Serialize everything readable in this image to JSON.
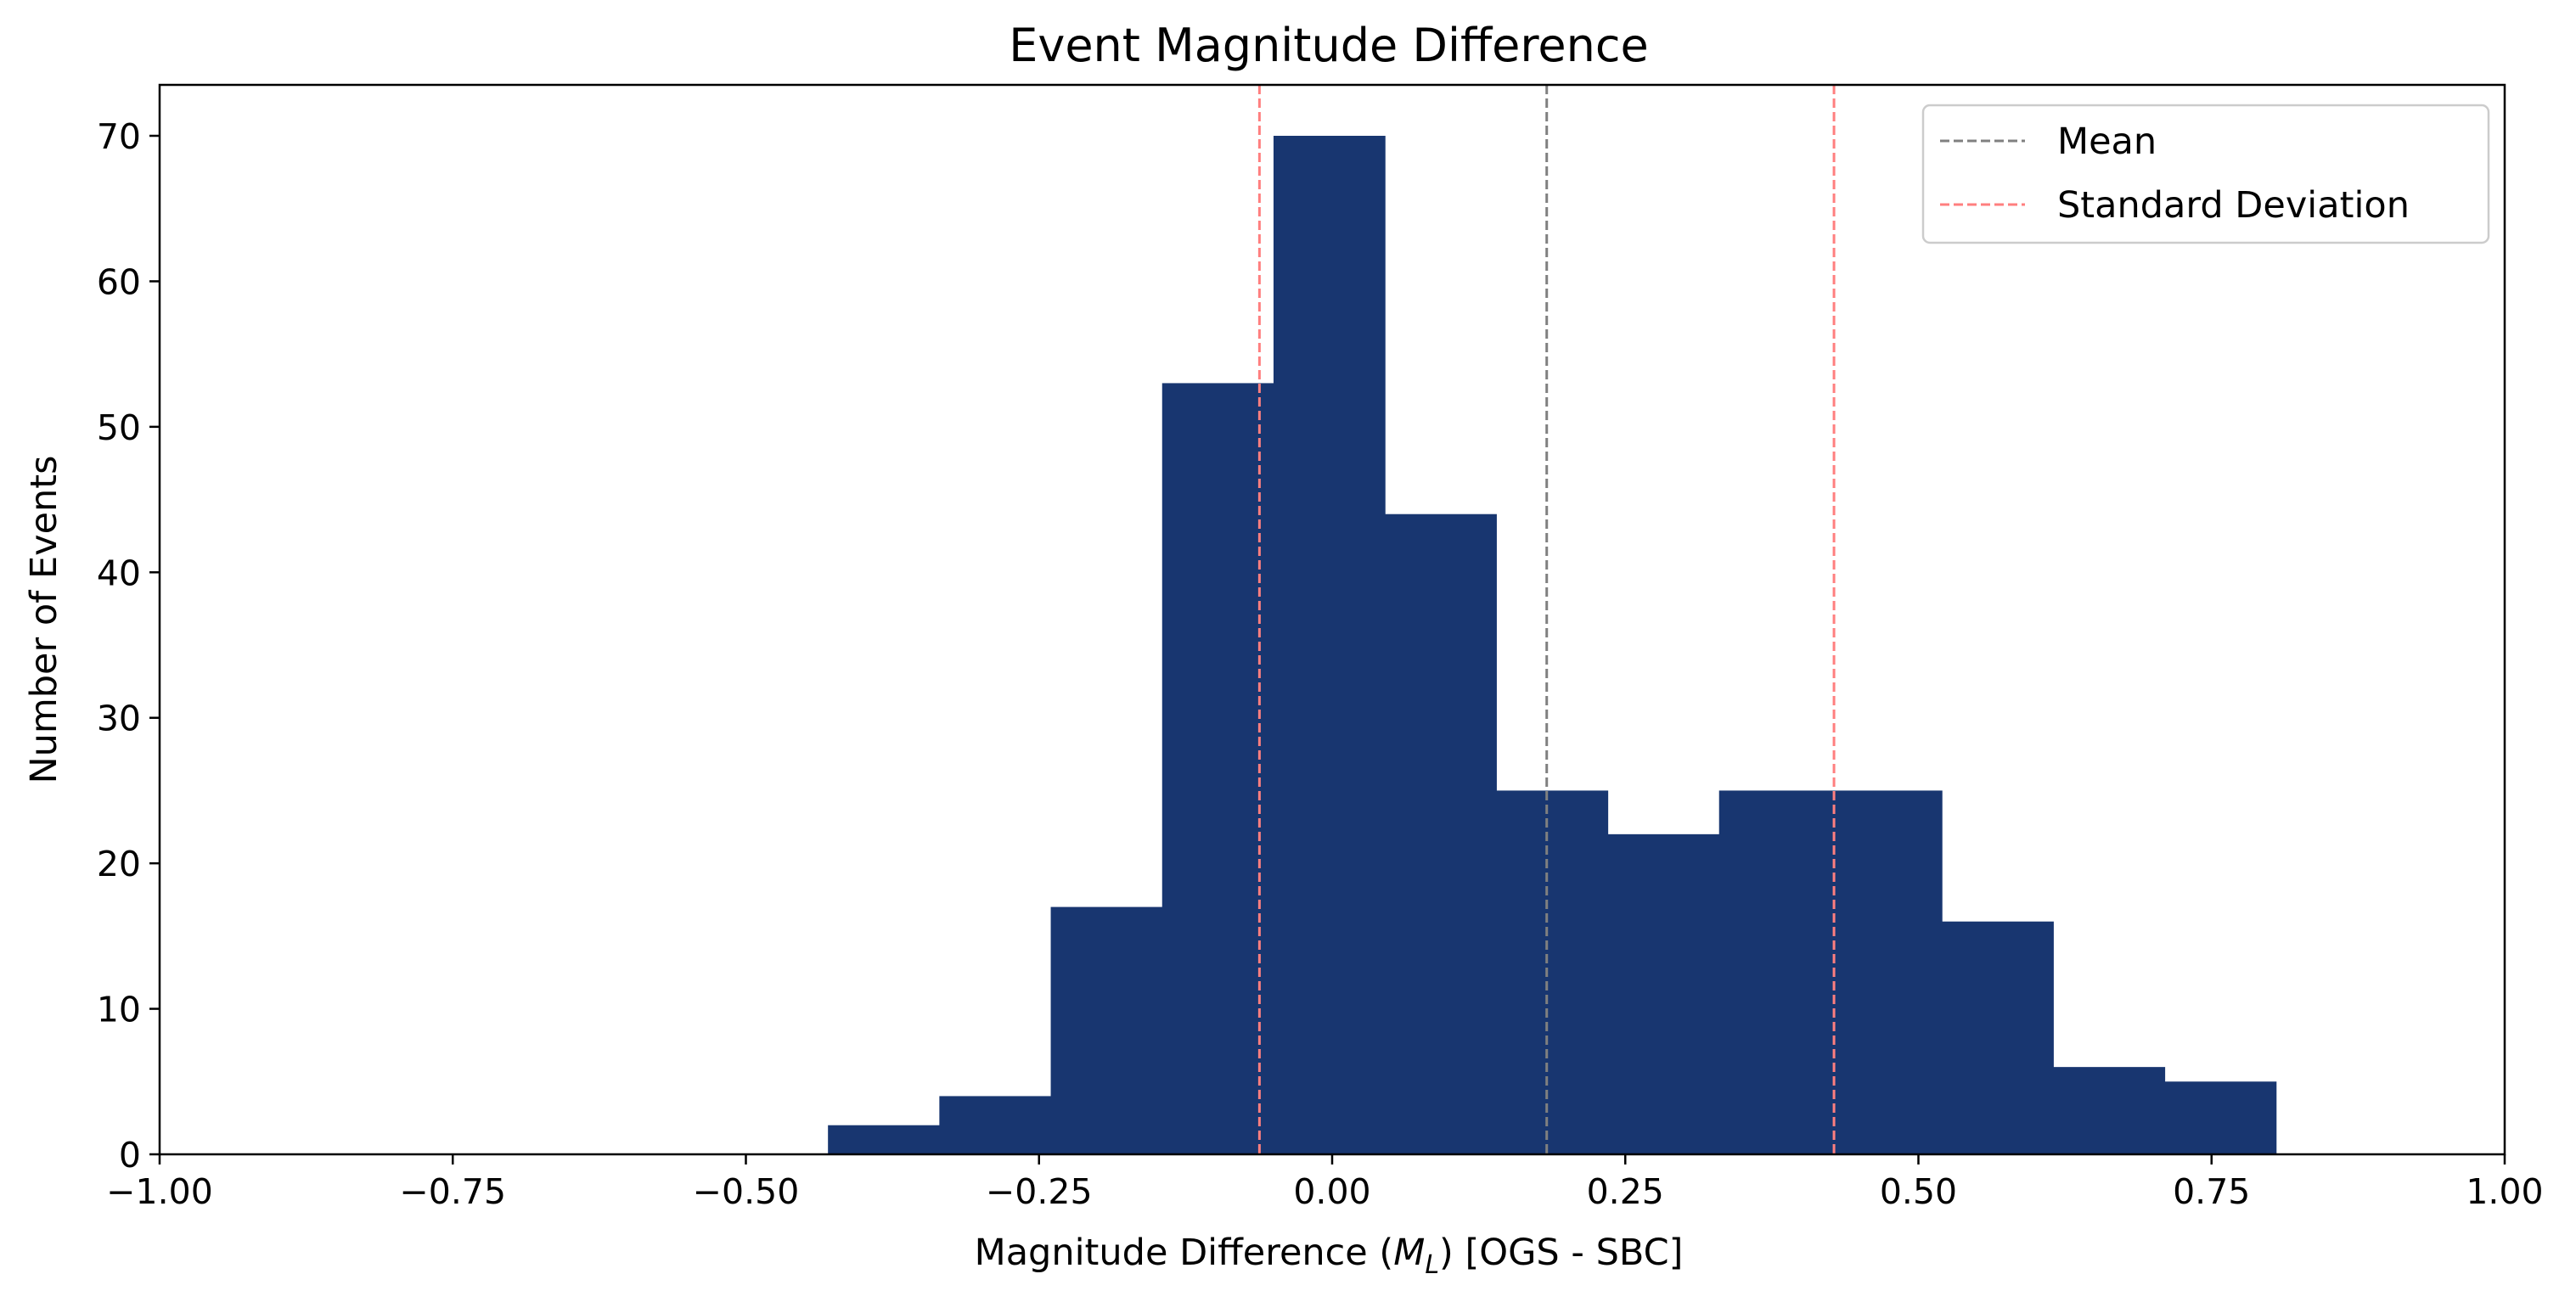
{
  "chart_data": {
    "type": "bar",
    "title": "Event Magnitude Difference",
    "xlabel_prefix": "Magnitude Difference (",
    "xlabel_symbol": "M",
    "xlabel_subscript": "L",
    "xlabel_suffix": ") [OGS - SBC]",
    "ylabel": "Number of Events",
    "xlim": [
      -1.0,
      1.0
    ],
    "ylim": [
      0,
      73.5
    ],
    "xticks": [
      -1.0,
      -0.75,
      -0.5,
      -0.25,
      0.0,
      0.25,
      0.5,
      0.75,
      1.0
    ],
    "xtick_labels": [
      "−1.00",
      "−0.75",
      "−0.50",
      "−0.25",
      "0.00",
      "0.25",
      "0.50",
      "0.75",
      "1.00"
    ],
    "yticks": [
      0,
      10,
      20,
      30,
      40,
      50,
      60,
      70
    ],
    "ytick_labels": [
      "0",
      "10",
      "20",
      "30",
      "40",
      "50",
      "60",
      "70"
    ],
    "bin_edges": [
      -0.43,
      -0.335,
      -0.24,
      -0.145,
      -0.05,
      0.045,
      0.14,
      0.235,
      0.33,
      0.425,
      0.52,
      0.615,
      0.71,
      0.805
    ],
    "counts": [
      2,
      4,
      17,
      53,
      70,
      44,
      25,
      22,
      25,
      25,
      16,
      6,
      5
    ],
    "bar_color": "#183670",
    "mean": 0.183,
    "std_lines": [
      -0.062,
      0.428
    ],
    "mean_color": "#808080",
    "std_color": "#ff7f7f",
    "legend": {
      "position": "top-right",
      "entries": [
        {
          "label": "Mean",
          "color": "#808080"
        },
        {
          "label": "Standard Deviation",
          "color": "#ff7f7f"
        }
      ]
    },
    "grid": false
  }
}
